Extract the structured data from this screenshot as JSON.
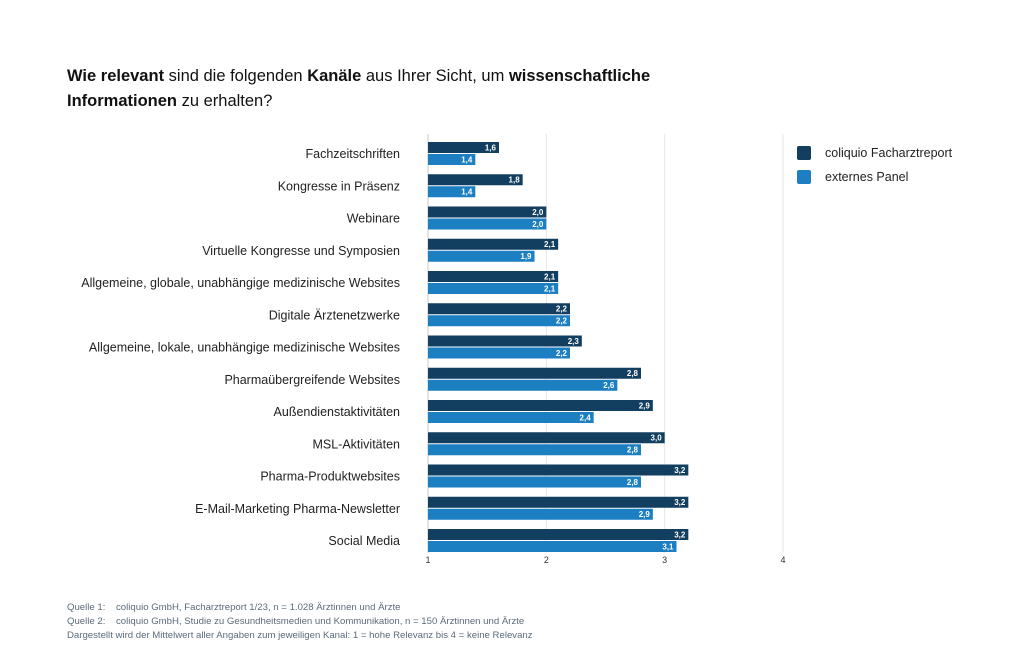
{
  "title": {
    "parts": [
      {
        "text": "Wie relevant",
        "bold": true
      },
      {
        "text": " sind die folgenden ",
        "bold": false
      },
      {
        "text": "Kanäle",
        "bold": true
      },
      {
        "text": " aus Ihrer Sicht, um ",
        "bold": false
      },
      {
        "text": "wissenschaftliche Informationen",
        "bold": true
      },
      {
        "text": " zu erhalten?",
        "bold": false
      }
    ]
  },
  "colors": {
    "series_1": "#123e5f",
    "series_2": "#1b7fc2",
    "grid": "#e6e6e6"
  },
  "legend": [
    {
      "label": "coliquio Facharztreport",
      "color": "#123e5f"
    },
    {
      "label": "externes Panel",
      "color": "#1b7fc2"
    }
  ],
  "chart_data": {
    "type": "bar",
    "orientation": "horizontal",
    "categories": [
      "Fachzeitschriften",
      "Kongresse in Präsenz",
      "Webinare",
      "Virtuelle Kongresse und Symposien",
      "Allgemeine, globale, unabhängige medizinische Websites",
      "Digitale Ärztenetzwerke",
      "Allgemeine, lokale, unabhängige medizinische Websites",
      "Pharmaübergreifende Websites",
      "Außendienstaktivitäten",
      "MSL-Aktivitäten",
      "Pharma-Produktwebsites",
      "E-Mail-Marketing Pharma-Newsletter",
      "Social Media"
    ],
    "series": [
      {
        "name": "coliquio Facharztreport",
        "values": [
          1.6,
          1.8,
          2.0,
          2.1,
          2.1,
          2.2,
          2.3,
          2.8,
          2.9,
          3.0,
          3.2,
          3.2,
          3.2
        ]
      },
      {
        "name": "externes Panel",
        "values": [
          1.4,
          1.4,
          2.0,
          1.9,
          2.1,
          2.2,
          2.2,
          2.6,
          2.4,
          2.8,
          2.8,
          2.9,
          3.1
        ]
      }
    ],
    "data_labels": [
      [
        "1,6",
        "1,8",
        "2,0",
        "2,1",
        "2,1",
        "2,2",
        "2,3",
        "2,8",
        "2,9",
        "3,0",
        "3,2",
        "3,2",
        "3,2"
      ],
      [
        "1,4",
        "1,4",
        "2,0",
        "1,9",
        "2,1",
        "2,2",
        "2,2",
        "2,6",
        "2,4",
        "2,8",
        "2,8",
        "2,9",
        "3,1"
      ]
    ],
    "xlim": [
      1,
      4
    ],
    "xticks": [
      1,
      2,
      3,
      4
    ],
    "grid": true,
    "legend_position": "top-right"
  },
  "notes": [
    {
      "label": "Quelle 1:",
      "text": "coliquio GmbH, Facharztreport 1/23, n = 1.028 Ärztinnen und Ärzte"
    },
    {
      "label": "Quelle 2:",
      "text": "coliquio GmbH, Studie zu Gesundheitsmedien und Kommunikation, n = 150 Ärztinnen und Ärzte"
    },
    {
      "label": "",
      "text": "Dargestellt wird der Mittelwert aller Angaben zum jeweiligen Kanal: 1 = hohe Relevanz bis 4 = keine Relevanz"
    }
  ]
}
